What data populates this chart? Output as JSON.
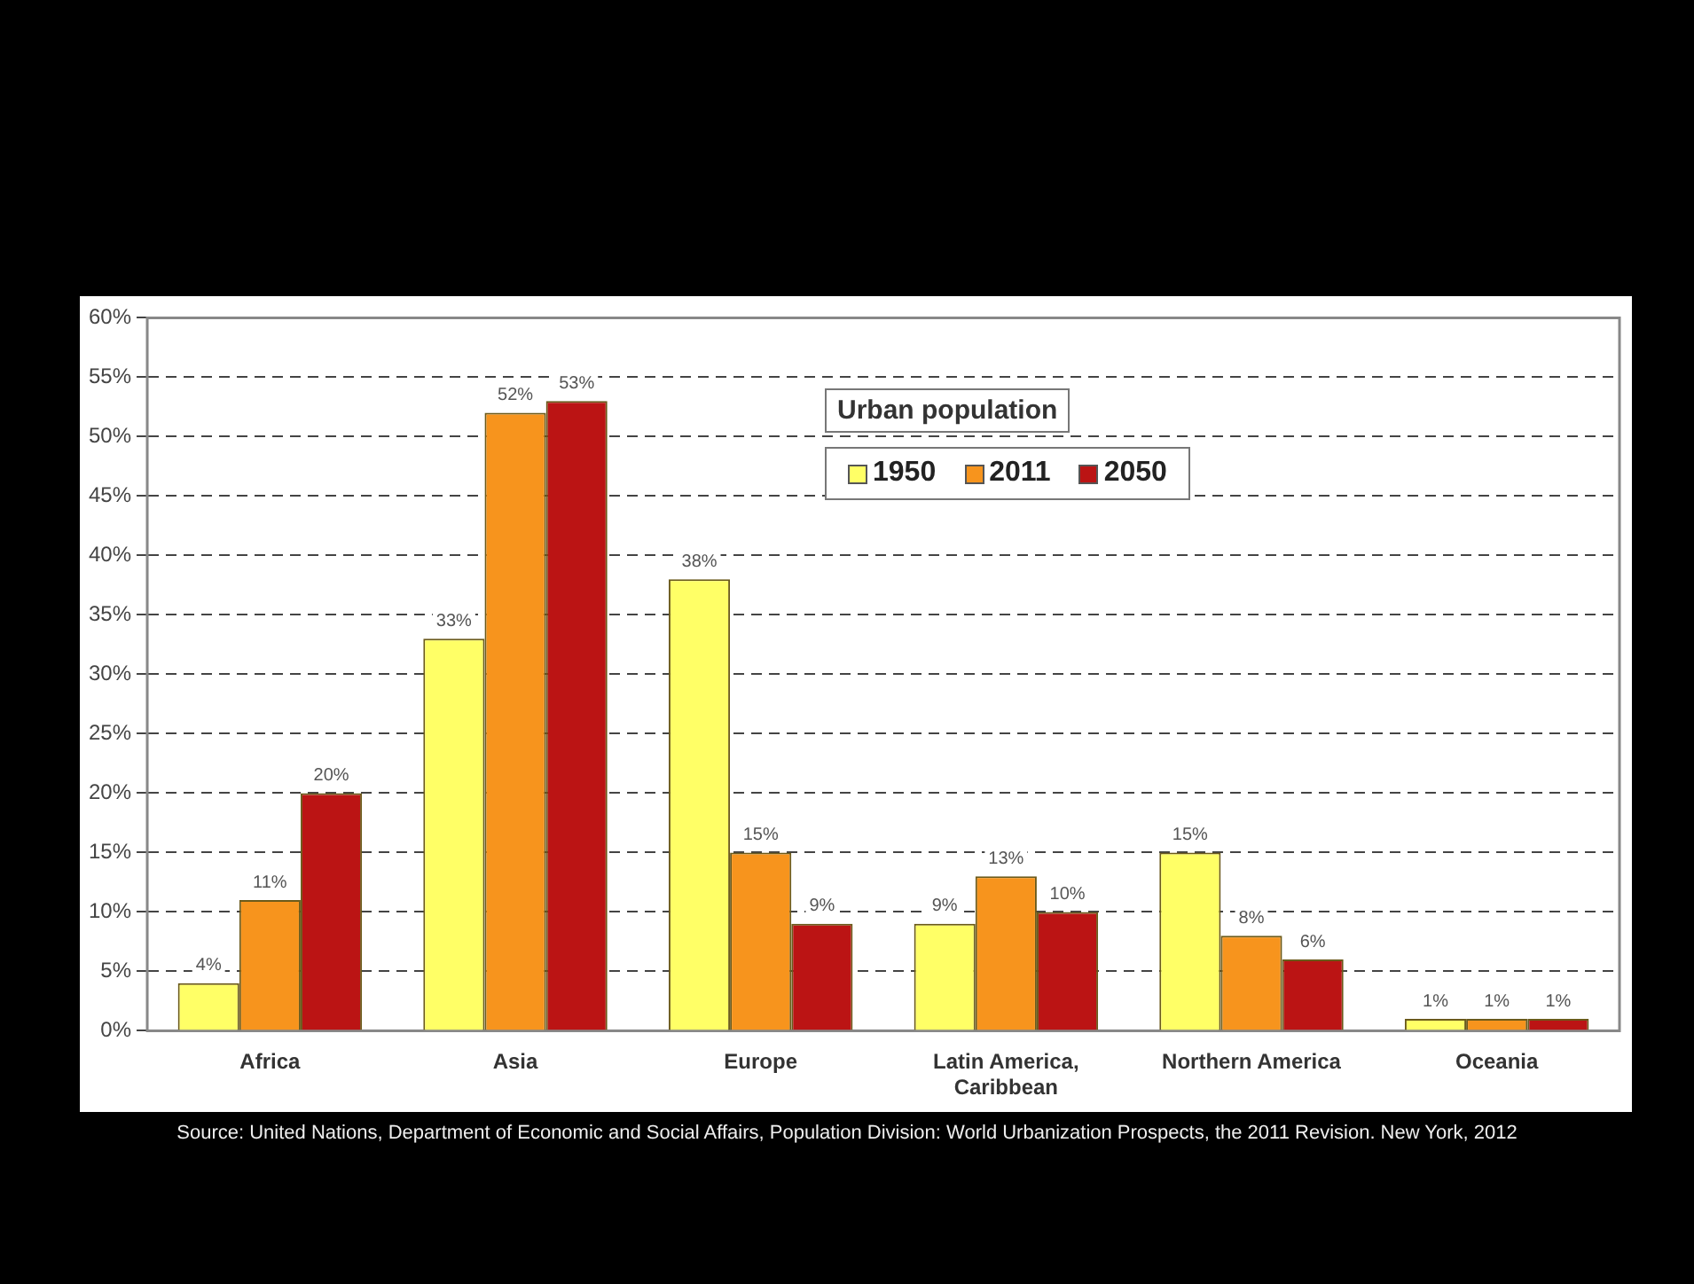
{
  "chart_data": {
    "type": "bar",
    "categories": [
      "Africa",
      "Asia",
      "Europe",
      "Latin America, Caribbean",
      "Northern America",
      "Oceania"
    ],
    "series": [
      {
        "name": "1950",
        "color": "#ffff66",
        "values": [
          4,
          33,
          38,
          9,
          15,
          1
        ],
        "value_labels": [
          "4%",
          "33%",
          "38%",
          "9%",
          "15%",
          "1%"
        ]
      },
      {
        "name": "2011",
        "color": "#f7941d",
        "values": [
          11,
          52,
          15,
          13,
          8,
          1
        ],
        "value_labels": [
          "11%",
          "52%",
          "15%",
          "13%",
          "8%",
          "1%"
        ]
      },
      {
        "name": "2050",
        "color": "#bb1414",
        "values": [
          20,
          53,
          9,
          10,
          6,
          1
        ],
        "value_labels": [
          "20%",
          "53%",
          "9%",
          "10%",
          "6%",
          "1%"
        ]
      }
    ],
    "legend_title": "Urban population",
    "legend": "top",
    "grid": "y",
    "ylim": [
      0,
      60
    ],
    "yticks": [
      {
        "value": 0,
        "label": "0%"
      },
      {
        "value": 5,
        "label": "5%"
      },
      {
        "value": 10,
        "label": "10%"
      },
      {
        "value": 15,
        "label": "15%"
      },
      {
        "value": 20,
        "label": "20%"
      },
      {
        "value": 25,
        "label": "25%"
      },
      {
        "value": 30,
        "label": "30%"
      },
      {
        "value": 35,
        "label": "35%"
      },
      {
        "value": 40,
        "label": "40%"
      },
      {
        "value": 45,
        "label": "45%"
      },
      {
        "value": 50,
        "label": "50%"
      },
      {
        "value": 55,
        "label": "55%"
      },
      {
        "value": 60,
        "label": "60%"
      }
    ],
    "annotations": [
      "Source: United Nations, Department of Economic and Social Affairs, Population Division: World Urbanization Prospects, the 2011 Revision. New York, 2012"
    ]
  }
}
